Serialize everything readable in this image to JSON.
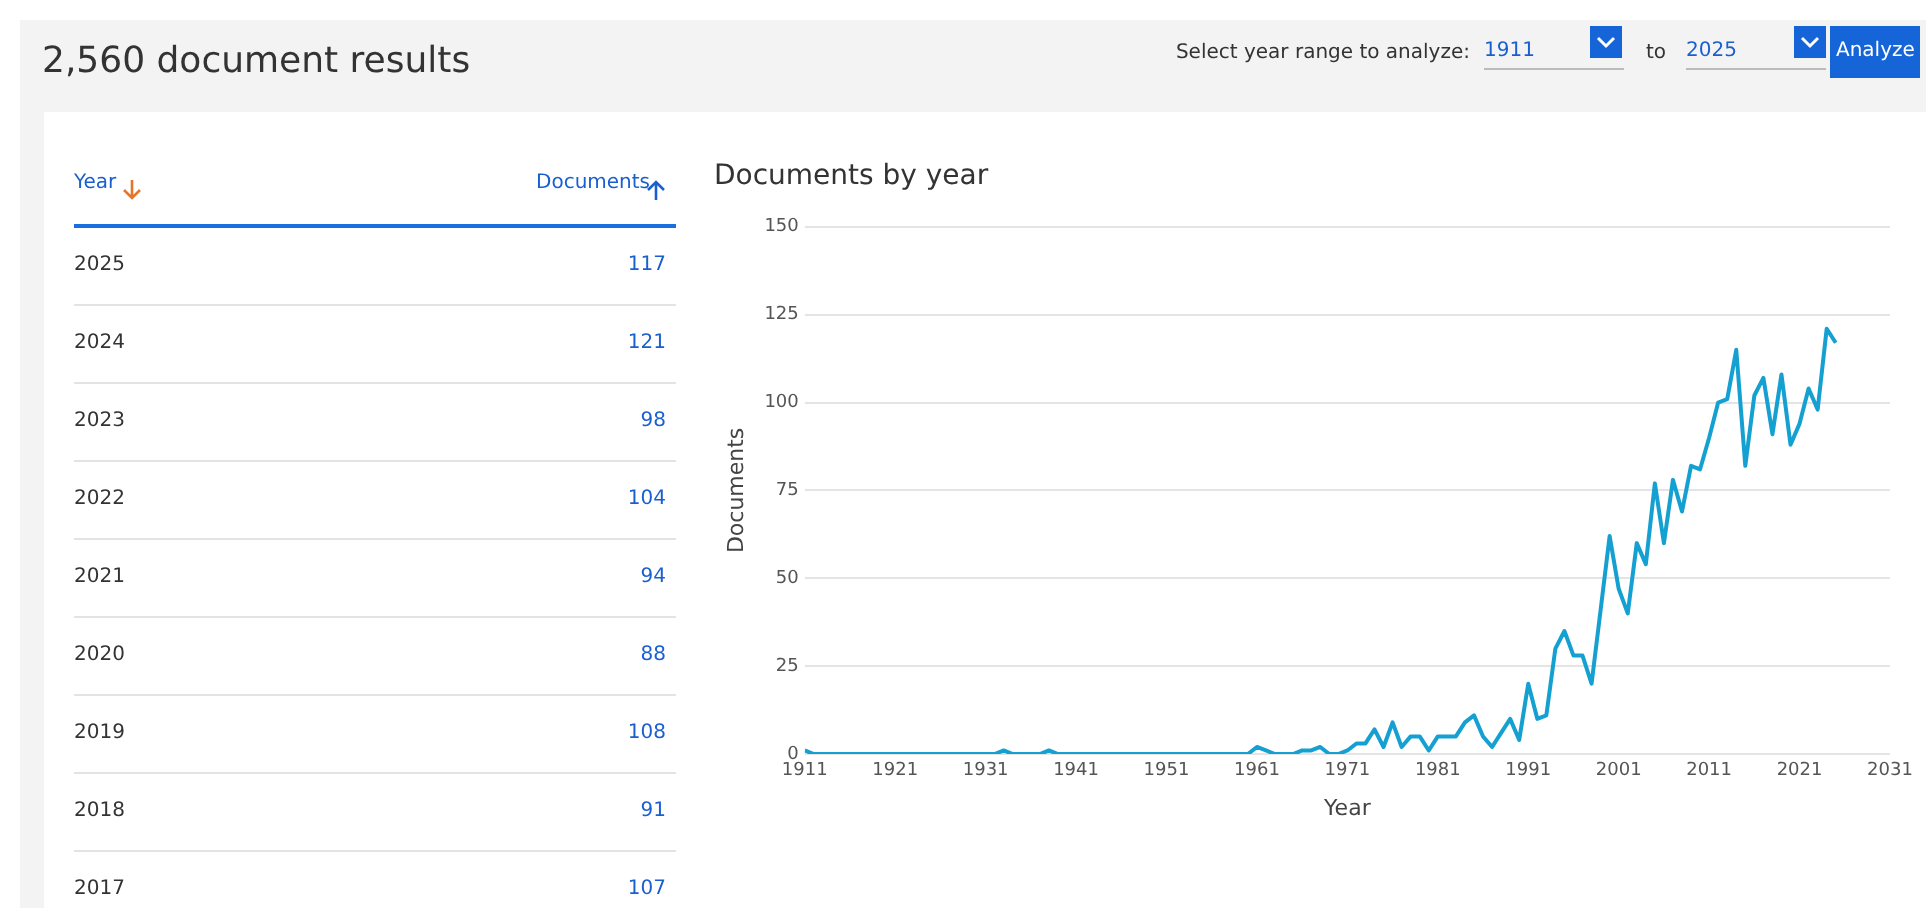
{
  "chart_data": {
    "type": "line",
    "title": "Documents by year",
    "xlabel": "Year",
    "ylabel": "Documents",
    "annotations": [
      "2,560 document results",
      "Select year range to analyze:",
      "1911",
      "to",
      "2025",
      "Analyze",
      "Year",
      "Documents",
      "2025",
      "117",
      "2024",
      "121",
      "2023",
      "98",
      "2022",
      "104",
      "2021",
      "94",
      "2020",
      "88",
      "2019",
      "108",
      "2018",
      "91",
      "2017",
      "107"
    ],
    "x": [
      1911,
      1912,
      1913,
      1914,
      1915,
      1916,
      1917,
      1918,
      1919,
      1920,
      1921,
      1922,
      1923,
      1924,
      1925,
      1926,
      1927,
      1928,
      1929,
      1930,
      1931,
      1932,
      1933,
      1934,
      1935,
      1936,
      1937,
      1938,
      1939,
      1940,
      1941,
      1942,
      1943,
      1944,
      1945,
      1946,
      1947,
      1948,
      1949,
      1950,
      1951,
      1952,
      1953,
      1954,
      1955,
      1956,
      1957,
      1958,
      1959,
      1960,
      1961,
      1962,
      1963,
      1964,
      1965,
      1966,
      1967,
      1968,
      1969,
      1970,
      1971,
      1972,
      1973,
      1974,
      1975,
      1976,
      1977,
      1978,
      1979,
      1980,
      1981,
      1982,
      1983,
      1984,
      1985,
      1986,
      1987,
      1988,
      1989,
      1990,
      1991,
      1992,
      1993,
      1994,
      1995,
      1996,
      1997,
      1998,
      1999,
      2000,
      2001,
      2002,
      2003,
      2004,
      2005,
      2006,
      2007,
      2008,
      2009,
      2010,
      2011,
      2012,
      2013,
      2014,
      2015,
      2016,
      2017,
      2018,
      2019,
      2020,
      2021,
      2022,
      2023,
      2024,
      2025
    ],
    "series": [
      {
        "color": "#15a0d2",
        "values": [
          1,
          0,
          0,
          0,
          0,
          0,
          0,
          0,
          0,
          0,
          0,
          0,
          0,
          0,
          0,
          0,
          0,
          0,
          0,
          0,
          0,
          0,
          1,
          0,
          0,
          0,
          0,
          1,
          0,
          0,
          0,
          0,
          0,
          0,
          0,
          0,
          0,
          0,
          0,
          0,
          0,
          0,
          0,
          0,
          0,
          0,
          0,
          0,
          0,
          0,
          2,
          1,
          0,
          0,
          0,
          1,
          1,
          2,
          0,
          0,
          1,
          3,
          3,
          7,
          2,
          9,
          2,
          5,
          5,
          1,
          5,
          5,
          5,
          9,
          11,
          5,
          2,
          6,
          10,
          4,
          20,
          10,
          11,
          30,
          35,
          28,
          28,
          20,
          41,
          62,
          47,
          40,
          60,
          54,
          77,
          60,
          78,
          69,
          82,
          81,
          90,
          100,
          101,
          115,
          82,
          102,
          107,
          91,
          108,
          88,
          94,
          104,
          98,
          121,
          117
        ]
      }
    ],
    "xlim": [
      1911,
      2031
    ],
    "xticks": [
      1911,
      1921,
      1931,
      1941,
      1951,
      1961,
      1971,
      1981,
      1991,
      2001,
      2011,
      2021,
      2031
    ],
    "ylim": [
      0,
      150
    ],
    "yticks": [
      0,
      25,
      50,
      75,
      100,
      125,
      150
    ],
    "grid": "y",
    "legend": false,
    "marker": "none",
    "line_style": "solid"
  }
}
